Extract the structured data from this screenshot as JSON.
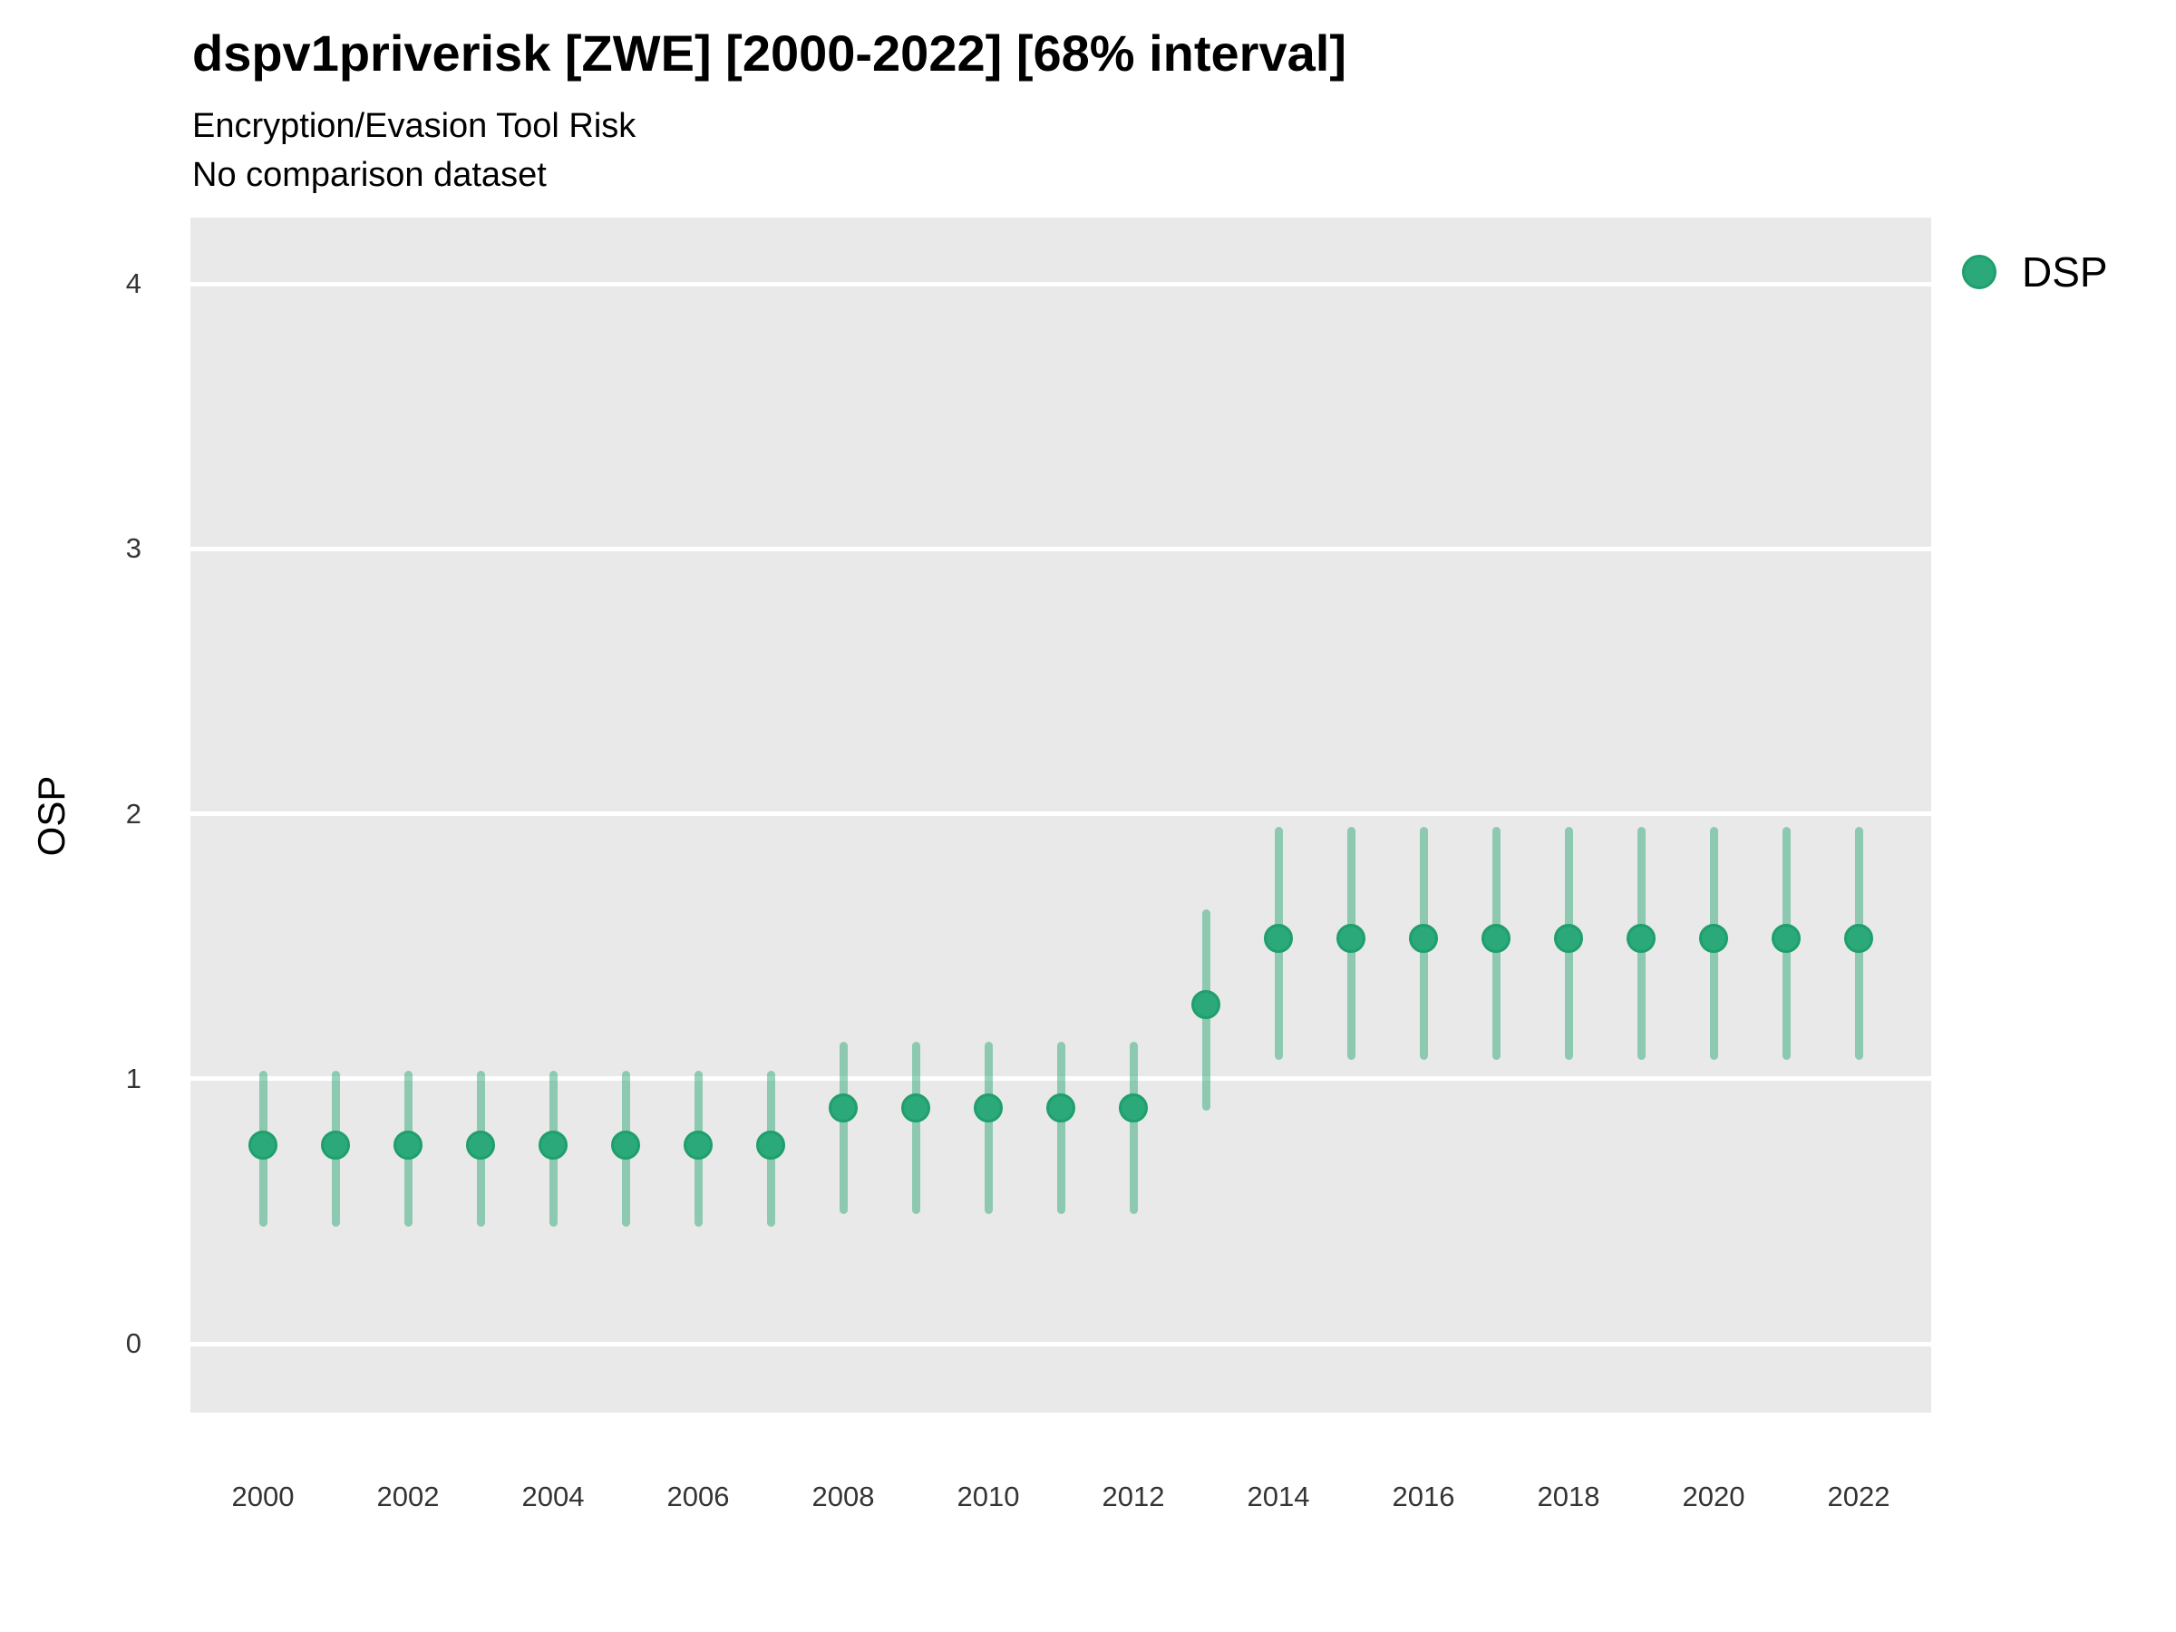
{
  "header": {
    "title": "dspv1priverisk [ZWE] [2000-2022] [68% interval]",
    "subtitle": "Encryption/Evasion Tool Risk",
    "note": "No comparison dataset"
  },
  "legend": {
    "label": "DSP"
  },
  "axes": {
    "y_title": "OSP",
    "y_ticks": [
      0,
      1,
      2,
      3,
      4
    ],
    "x_ticks": [
      2000,
      2002,
      2004,
      2006,
      2008,
      2010,
      2012,
      2014,
      2016,
      2018,
      2020,
      2022
    ]
  },
  "colors": {
    "point_fill": "#2ca97a",
    "point_stroke": "#1e9f6b",
    "interval_bar": "rgba(42,168,118,0.48)",
    "panel_background": "#e9e9e9",
    "gridline": "#ffffff",
    "text": "#000000",
    "tick_text": "#343434"
  },
  "chart_data": {
    "type": "scatter",
    "title": "dspv1priverisk [ZWE] [2000-2022] [68% interval]",
    "subtitle": "Encryption/Evasion Tool Risk",
    "note": "No comparison dataset",
    "xlabel": "",
    "ylabel": "OSP",
    "legend_position": "right",
    "grid": "major-horizontal-only",
    "interval_level": "68%",
    "x": [
      2000,
      2001,
      2002,
      2003,
      2004,
      2005,
      2006,
      2007,
      2008,
      2009,
      2010,
      2011,
      2012,
      2013,
      2014,
      2015,
      2016,
      2017,
      2018,
      2019,
      2020,
      2021,
      2022
    ],
    "series": [
      {
        "name": "DSP",
        "values": [
          0.75,
          0.75,
          0.75,
          0.75,
          0.75,
          0.75,
          0.75,
          0.75,
          0.89,
          0.89,
          0.89,
          0.89,
          0.89,
          1.28,
          1.53,
          1.53,
          1.53,
          1.53,
          1.53,
          1.53,
          1.53,
          1.53,
          1.53
        ],
        "lower": [
          0.44,
          0.44,
          0.44,
          0.44,
          0.44,
          0.44,
          0.44,
          0.44,
          0.49,
          0.49,
          0.49,
          0.49,
          0.49,
          0.88,
          1.07,
          1.07,
          1.07,
          1.07,
          1.07,
          1.07,
          1.07,
          1.07,
          1.07
        ],
        "upper": [
          1.03,
          1.03,
          1.03,
          1.03,
          1.03,
          1.03,
          1.03,
          1.03,
          1.14,
          1.14,
          1.14,
          1.14,
          1.14,
          1.64,
          1.95,
          1.95,
          1.95,
          1.95,
          1.95,
          1.95,
          1.95,
          1.95,
          1.95
        ]
      }
    ],
    "ylim": [
      -0.26,
      4.25
    ],
    "xlim": [
      1999,
      2023
    ],
    "y_ticks": [
      0,
      1,
      2,
      3,
      4
    ],
    "x_ticks": [
      2000,
      2002,
      2004,
      2006,
      2008,
      2010,
      2012,
      2014,
      2016,
      2018,
      2020,
      2022
    ]
  }
}
